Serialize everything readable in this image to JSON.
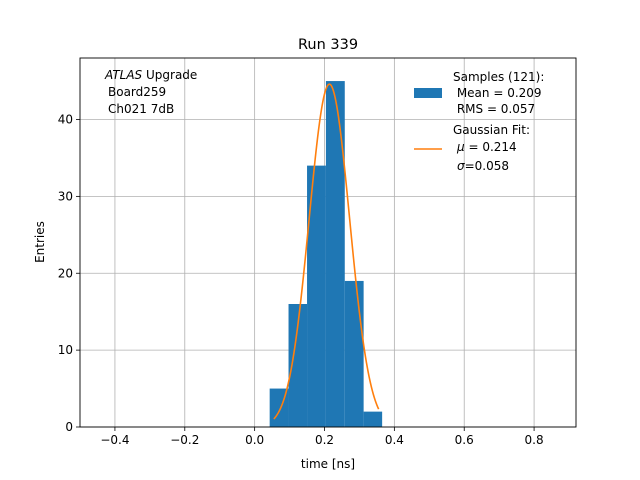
{
  "chart_data": {
    "type": "bar",
    "title": "Run 339",
    "xlabel": "time [ns]",
    "ylabel": "Entries",
    "xlim": [
      -0.5,
      0.92
    ],
    "ylim": [
      0,
      48
    ],
    "grid": true,
    "x_ticks": [
      -0.4,
      -0.2,
      0.0,
      0.2,
      0.4,
      0.6,
      0.8
    ],
    "x_tick_labels": [
      "−0.4",
      "−0.2",
      "0.0",
      "0.2",
      "0.4",
      "0.6",
      "0.8"
    ],
    "y_ticks": [
      0,
      10,
      20,
      30,
      40
    ],
    "y_tick_labels": [
      "0",
      "10",
      "20",
      "30",
      "40"
    ],
    "annotation": {
      "line1_italic": "ATLAS",
      "line1_rest": " Upgrade",
      "line2": "Board259",
      "line3": "Ch021 7dB"
    },
    "histogram": {
      "bin_edges": [
        0.043,
        0.097,
        0.15,
        0.204,
        0.258,
        0.312,
        0.365
      ],
      "counts": [
        5,
        16,
        34,
        45,
        19,
        2
      ],
      "color": "#1f77b4",
      "legend": {
        "line1": "Samples (121):",
        "line2": " Mean = 0.209",
        "line3": " RMS = 0.057"
      }
    },
    "fit": {
      "type": "gaussian",
      "amplitude": 44.6,
      "mu": 0.214,
      "sigma": 0.058,
      "x_range": [
        0.055,
        0.355
      ],
      "color": "#ff7f0e",
      "legend": {
        "line1": "Gaussian Fit:",
        "line2_symbol": "μ",
        "line2_rest": " = 0.214",
        "line3_symbol": "σ",
        "line3_rest": "=0.058"
      }
    },
    "legend_position": "upper right"
  }
}
